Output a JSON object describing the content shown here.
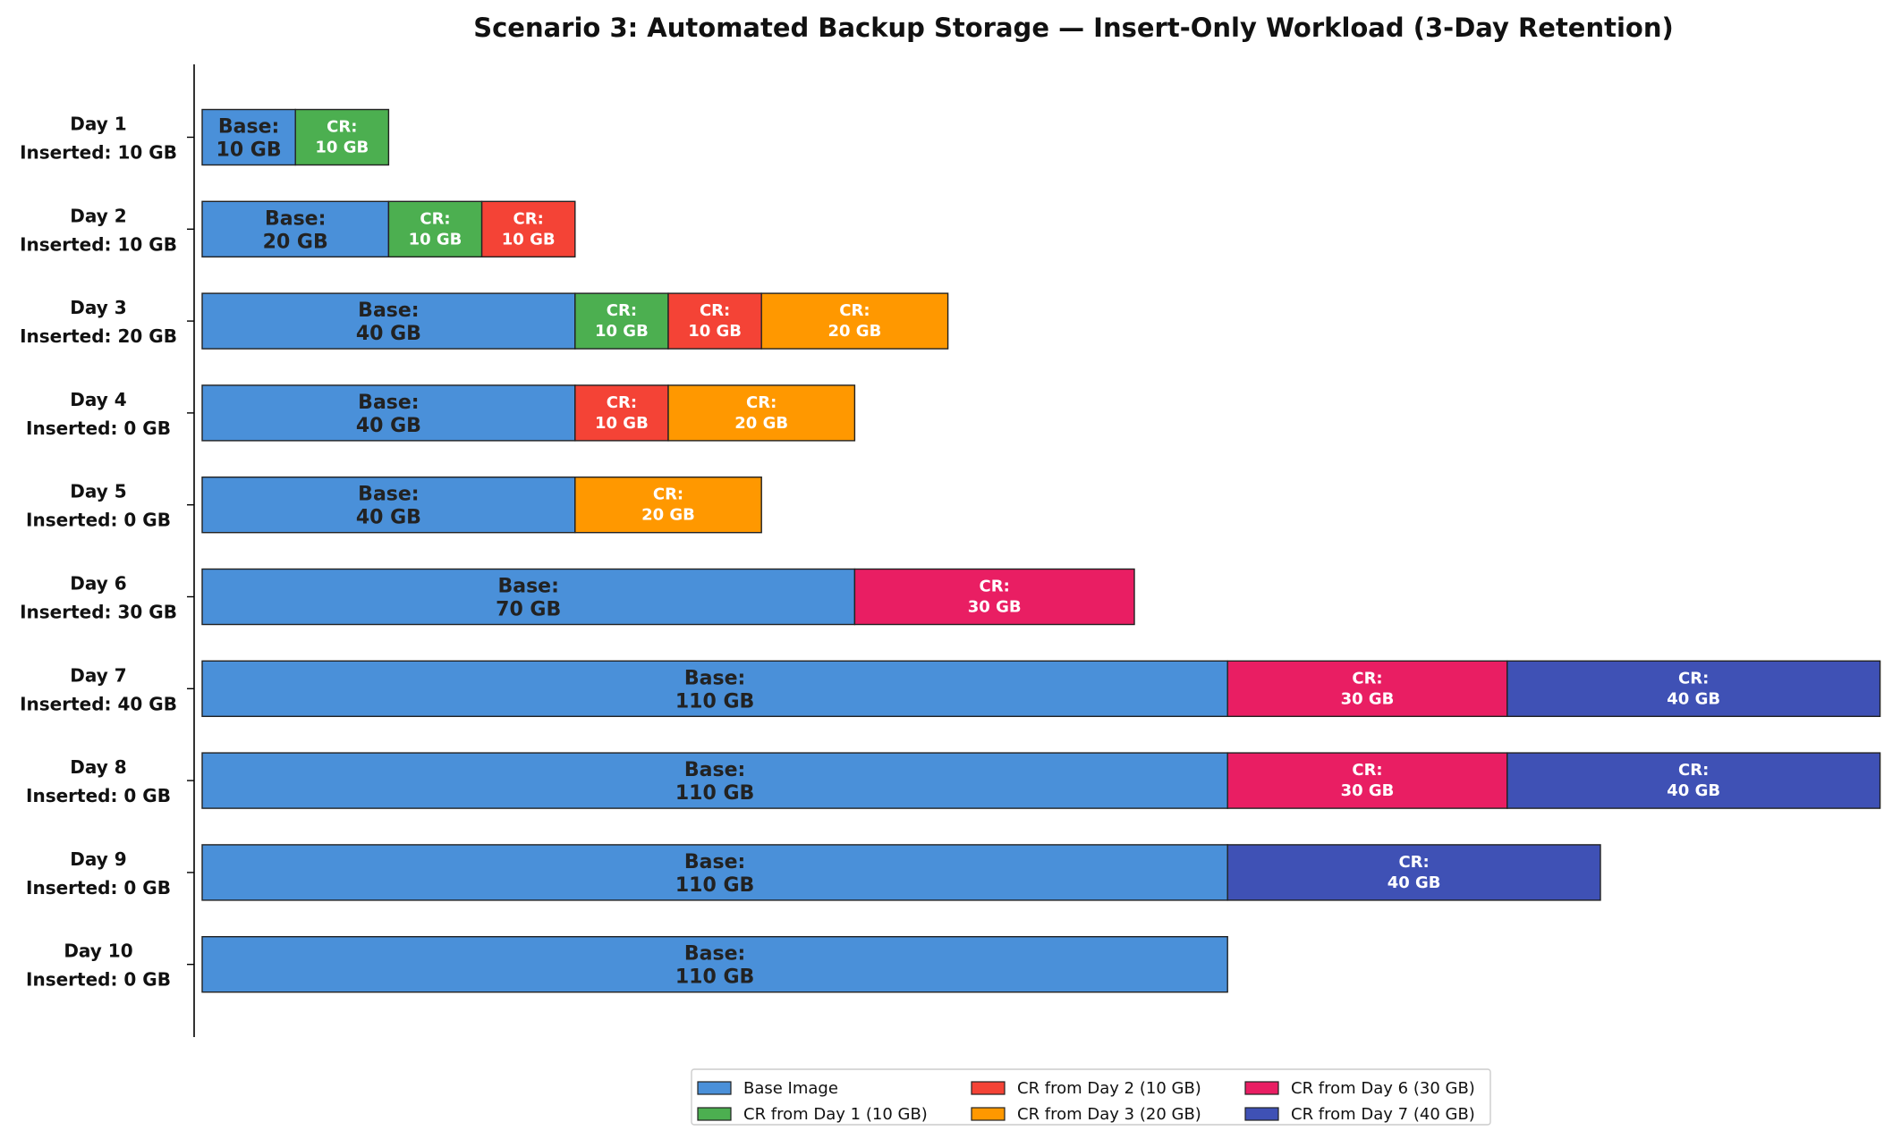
{
  "chart_data": {
    "type": "bar",
    "orientation": "horizontal",
    "stacked": true,
    "title": "Scenario 3: Automated Backup Storage — Insert-Only Workload (3-Day Retention)",
    "xlabel": "",
    "ylabel": "",
    "grid": false,
    "legend_position": "bottom-center",
    "categories": [
      {
        "day": "Day 1",
        "inserted": "Inserted: 10 GB"
      },
      {
        "day": "Day 2",
        "inserted": "Inserted: 10 GB"
      },
      {
        "day": "Day 3",
        "inserted": "Inserted: 20 GB"
      },
      {
        "day": "Day 4",
        "inserted": "Inserted: 0 GB"
      },
      {
        "day": "Day 5",
        "inserted": "Inserted: 0 GB"
      },
      {
        "day": "Day 6",
        "inserted": "Inserted: 30 GB"
      },
      {
        "day": "Day 7",
        "inserted": "Inserted: 40 GB"
      },
      {
        "day": "Day 8",
        "inserted": "Inserted: 0 GB"
      },
      {
        "day": "Day 9",
        "inserted": "Inserted: 0 GB"
      },
      {
        "day": "Day 10",
        "inserted": "Inserted: 0 GB"
      }
    ],
    "series": [
      {
        "name": "Base Image",
        "color": "#4a90d9",
        "kind": "base",
        "prefix": "Base:",
        "values": [
          10,
          20,
          40,
          40,
          40,
          70,
          110,
          110,
          110,
          110
        ]
      },
      {
        "name": "CR from Day 1 (10 GB)",
        "color": "#4caf50",
        "kind": "cr",
        "prefix": "CR:",
        "values": [
          10,
          10,
          10,
          0,
          0,
          0,
          0,
          0,
          0,
          0
        ]
      },
      {
        "name": "CR from Day 2 (10 GB)",
        "color": "#f44336",
        "kind": "cr",
        "prefix": "CR:",
        "values": [
          0,
          10,
          10,
          10,
          0,
          0,
          0,
          0,
          0,
          0
        ]
      },
      {
        "name": "CR from Day 3 (20 GB)",
        "color": "#ff9800",
        "kind": "cr",
        "prefix": "CR:",
        "values": [
          0,
          0,
          20,
          20,
          20,
          0,
          0,
          0,
          0,
          0
        ]
      },
      {
        "name": "CR from Day 6 (30 GB)",
        "color": "#e91e63",
        "kind": "cr",
        "prefix": "CR:",
        "values": [
          0,
          0,
          0,
          0,
          0,
          30,
          30,
          30,
          0,
          0
        ]
      },
      {
        "name": "CR from Day 7 (40 GB)",
        "color": "#3f51b5",
        "kind": "cr",
        "prefix": "CR:",
        "values": [
          0,
          0,
          0,
          0,
          0,
          0,
          40,
          40,
          40,
          0
        ]
      }
    ],
    "unit": "GB",
    "xlim": [
      0,
      180
    ]
  }
}
